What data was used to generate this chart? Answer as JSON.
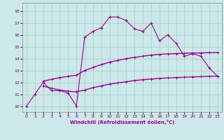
{
  "xlabel": "Windchill (Refroidissement éolien,°C)",
  "bg_color": "#cce8e8",
  "line_color": "#990099",
  "grid_color": "#aacccc",
  "xlim": [
    -0.5,
    23.5
  ],
  "ylim": [
    9.5,
    18.7
  ],
  "xticks": [
    0,
    1,
    2,
    3,
    4,
    5,
    6,
    7,
    8,
    9,
    10,
    11,
    12,
    13,
    14,
    15,
    16,
    17,
    18,
    19,
    20,
    21,
    22,
    23
  ],
  "yticks": [
    10,
    11,
    12,
    13,
    14,
    15,
    16,
    17,
    18
  ],
  "jagged_x": [
    0,
    1,
    2,
    3,
    4,
    5,
    6,
    7,
    8,
    9,
    10,
    11,
    12,
    13,
    14,
    15,
    16,
    17,
    18,
    19,
    20,
    21,
    22,
    23
  ],
  "jagged_y": [
    10,
    11,
    12,
    11.3,
    11.3,
    11.1,
    10.0,
    15.8,
    16.3,
    16.6,
    17.5,
    17.5,
    17.2,
    16.5,
    16.3,
    17.0,
    15.5,
    16.0,
    15.3,
    14.2,
    14.4,
    14.2,
    13.2,
    12.5
  ],
  "upper_x": [
    2,
    3,
    4,
    5,
    6,
    7,
    8,
    9,
    10,
    11,
    12,
    13,
    14,
    15,
    16,
    17,
    18,
    19,
    20,
    21,
    22,
    23
  ],
  "upper_y": [
    12.1,
    12.25,
    12.4,
    12.5,
    12.6,
    13.0,
    13.25,
    13.5,
    13.7,
    13.85,
    14.0,
    14.1,
    14.2,
    14.3,
    14.35,
    14.4,
    14.42,
    14.45,
    14.47,
    14.48,
    14.5,
    14.5
  ],
  "lower_x": [
    2,
    3,
    4,
    5,
    6,
    7,
    8,
    9,
    10,
    11,
    12,
    13,
    14,
    15,
    16,
    17,
    18,
    19,
    20,
    21,
    22,
    23
  ],
  "lower_y": [
    11.7,
    11.5,
    11.35,
    11.25,
    11.2,
    11.35,
    11.55,
    11.7,
    11.85,
    11.95,
    12.05,
    12.15,
    12.22,
    12.28,
    12.33,
    12.37,
    12.4,
    12.43,
    12.46,
    12.48,
    12.5,
    12.52
  ]
}
